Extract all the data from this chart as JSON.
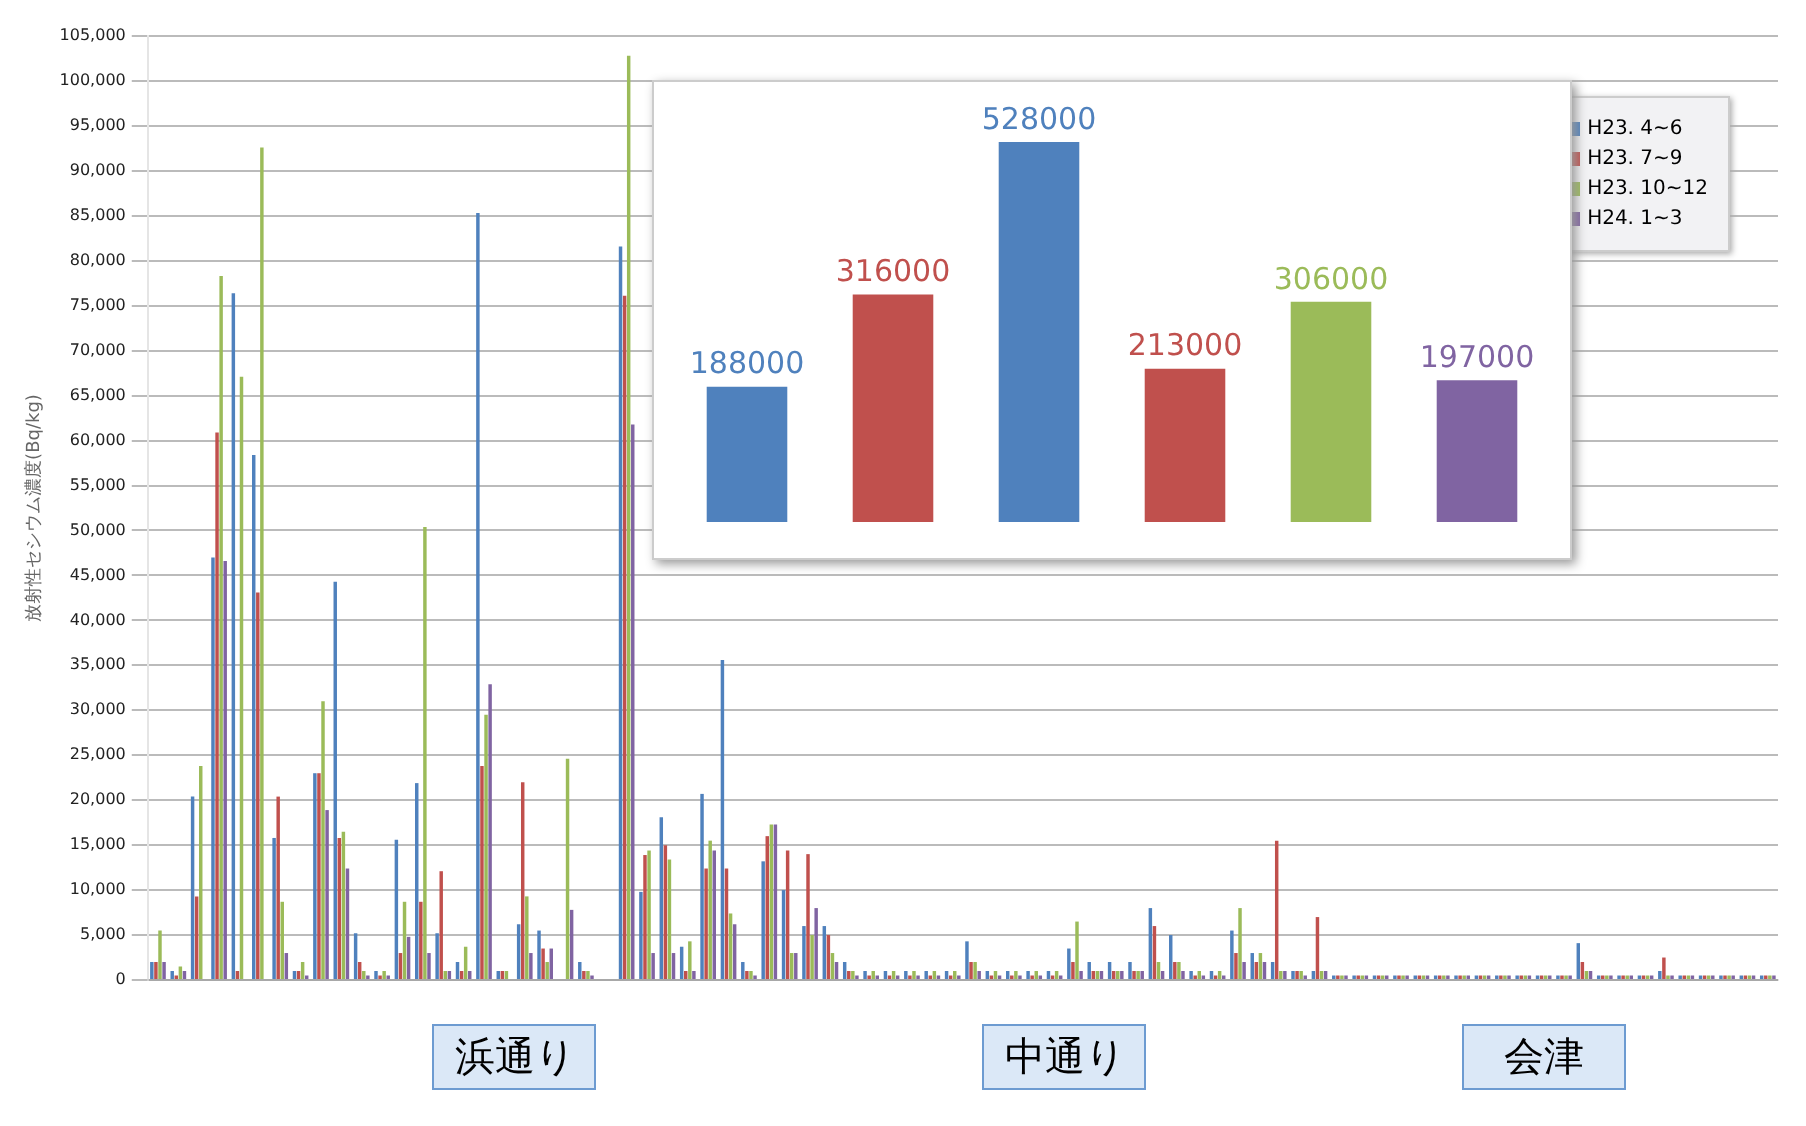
{
  "chart_data": [
    {
      "type": "bar",
      "ylabel": "放射性セシウム濃度(Bq/kg)",
      "categories": [
        null,
        null,
        null,
        null,
        null,
        null,
        null,
        null,
        null,
        null,
        null,
        null,
        null,
        null,
        null,
        null,
        null,
        null,
        null,
        null,
        null,
        null,
        null,
        null,
        null,
        null,
        null,
        null,
        null,
        null,
        null,
        null,
        null,
        null,
        null,
        null,
        null,
        null,
        null,
        null,
        null,
        null,
        null,
        null,
        null,
        null,
        null,
        null,
        null,
        null,
        null,
        null,
        null,
        null,
        null,
        null,
        null,
        null,
        null,
        null,
        null,
        null,
        null,
        null,
        null,
        null,
        null,
        null,
        null,
        null,
        null,
        null,
        null,
        null,
        null,
        null,
        null,
        null,
        null,
        null
      ],
      "series": [
        {
          "name": "H23. 4~6",
          "color": "#4f81bd",
          "values": [
            2000,
            1000,
            20400,
            47000,
            76400,
            58400,
            15800,
            1000,
            23000,
            44300,
            5200,
            1000,
            15600,
            21900,
            5200,
            2000,
            85300,
            1000,
            6200,
            5500,
            null,
            2000,
            null,
            81600,
            9800,
            18100,
            3700,
            20700,
            35600,
            2000,
            13200,
            10000,
            6000,
            6000,
            2000,
            1000,
            1000,
            1000,
            1000,
            1000,
            4300,
            1000,
            1000,
            1000,
            1000,
            3500,
            2000,
            2000,
            2000,
            8000,
            5000,
            1000,
            1000,
            5500,
            3000,
            2000,
            1000,
            1000,
            500,
            500,
            500,
            500,
            500,
            500,
            500,
            500,
            500,
            500,
            500,
            500,
            4100,
            500,
            500,
            500,
            1000,
            500,
            500,
            500,
            500,
            500
          ]
        },
        {
          "name": "H23. 7~9",
          "color": "#c0504d",
          "values": [
            2000,
            500,
            9300,
            60900,
            1000,
            43100,
            20400,
            1000,
            23000,
            15800,
            2000,
            500,
            3000,
            8700,
            12100,
            1000,
            23800,
            1000,
            22000,
            3500,
            null,
            1000,
            null,
            76100,
            13900,
            15000,
            1000,
            12400,
            12400,
            1000,
            16000,
            14400,
            14000,
            5000,
            1000,
            500,
            500,
            500,
            500,
            500,
            2000,
            500,
            500,
            500,
            500,
            2000,
            1000,
            1000,
            1000,
            6000,
            2000,
            500,
            500,
            3000,
            2000,
            15500,
            1000,
            7000,
            500,
            500,
            500,
            500,
            500,
            500,
            500,
            500,
            500,
            500,
            500,
            500,
            2000,
            500,
            500,
            500,
            2500,
            500,
            500,
            500,
            500,
            500
          ]
        },
        {
          "name": "H23. 10~12",
          "color": "#9bbb59",
          "values": [
            5500,
            1500,
            23800,
            78300,
            67100,
            92600,
            8700,
            2000,
            31000,
            16500,
            1000,
            1000,
            8700,
            50400,
            1000,
            3700,
            29500,
            1000,
            9300,
            2000,
            24600,
            1000,
            null,
            102800,
            14400,
            13400,
            4300,
            15500,
            7400,
            1000,
            17300,
            3000,
            5000,
            3000,
            1000,
            1000,
            1000,
            1000,
            1000,
            1000,
            2000,
            1000,
            1000,
            1000,
            1000,
            6500,
            1000,
            1000,
            1000,
            2000,
            2000,
            1000,
            1000,
            8000,
            3000,
            1000,
            1000,
            1000,
            500,
            500,
            500,
            500,
            500,
            500,
            500,
            500,
            500,
            500,
            500,
            500,
            1000,
            500,
            500,
            500,
            500,
            500,
            500,
            500,
            500,
            500
          ]
        },
        {
          "name": "H24. 1~3",
          "color": "#8064a2",
          "values": [
            2000,
            1000,
            null,
            46600,
            null,
            null,
            3000,
            500,
            18900,
            12400,
            500,
            500,
            4800,
            3000,
            1000,
            1000,
            32900,
            null,
            3000,
            3500,
            7800,
            500,
            null,
            61800,
            3000,
            3000,
            1000,
            14400,
            6200,
            500,
            17300,
            3000,
            8000,
            2000,
            500,
            500,
            500,
            500,
            500,
            500,
            1000,
            500,
            500,
            500,
            500,
            1000,
            1000,
            1000,
            1000,
            1000,
            1000,
            500,
            500,
            2000,
            2000,
            1000,
            500,
            1000,
            500,
            500,
            500,
            500,
            500,
            500,
            500,
            500,
            500,
            500,
            500,
            500,
            1000,
            500,
            500,
            500,
            500,
            500,
            500,
            500,
            500,
            500
          ]
        }
      ],
      "ylim": [
        0,
        105000
      ],
      "yticks": [
        {
          "value": 0,
          "label": "0"
        },
        {
          "value": 5000,
          "label": "5,000"
        },
        {
          "value": 10000,
          "label": "10,000"
        },
        {
          "value": 15000,
          "label": "15,000"
        },
        {
          "value": 20000,
          "label": "20,000"
        },
        {
          "value": 25000,
          "label": "25,000"
        },
        {
          "value": 30000,
          "label": "30,000"
        },
        {
          "value": 35000,
          "label": "35,000"
        },
        {
          "value": 40000,
          "label": "40,000"
        },
        {
          "value": 45000,
          "label": "45,000"
        },
        {
          "value": 50000,
          "label": "50,000"
        },
        {
          "value": 55000,
          "label": "55,000"
        },
        {
          "value": 60000,
          "label": "60,000"
        },
        {
          "value": 65000,
          "label": "65,000"
        },
        {
          "value": 70000,
          "label": "70,000"
        },
        {
          "value": 75000,
          "label": "75,000"
        },
        {
          "value": 80000,
          "label": "80,000"
        },
        {
          "value": 85000,
          "label": "85,000"
        },
        {
          "value": 90000,
          "label": "90,000"
        },
        {
          "value": 95000,
          "label": "95,000"
        },
        {
          "value": 100000,
          "label": "100,000"
        },
        {
          "value": 105000,
          "label": "105,000"
        }
      ],
      "grid": "y",
      "legend": "top right",
      "tick_labels": "y",
      "annotations": [
        "浜通り",
        "中通り",
        "会津"
      ]
    },
    {
      "type": "bar",
      "categories": [
        null,
        null,
        null,
        null,
        null,
        null
      ],
      "data_labels": true,
      "tick_labels": false,
      "series": [
        {
          "colors": [
            "#4f81bd",
            "#c0504d",
            "#4f81bd",
            "#c0504d",
            "#9bbb59",
            "#8064a2"
          ],
          "values": [
            188000,
            316000,
            528000,
            213000,
            306000,
            197000
          ]
        }
      ]
    }
  ]
}
